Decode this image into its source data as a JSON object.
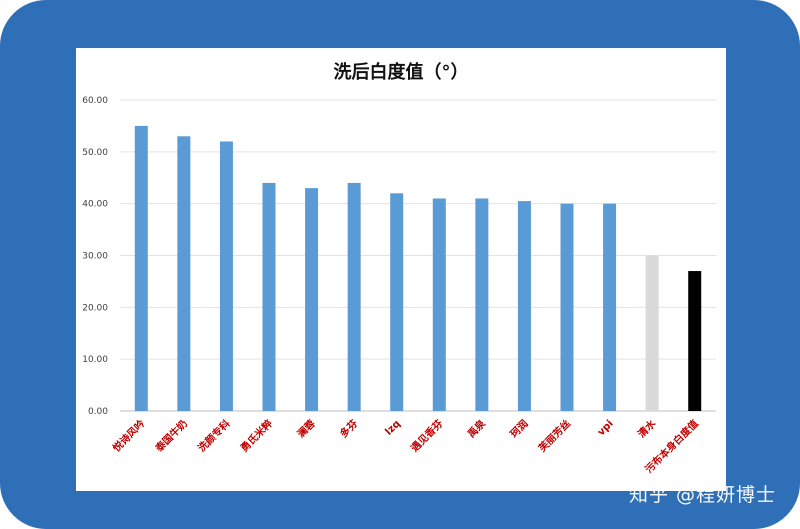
{
  "watermark": "知乎 @程妍博士",
  "chart_data": {
    "type": "bar",
    "title": "洗后白度值（°）",
    "xlabel": "",
    "ylabel": "",
    "ylim": [
      0,
      60
    ],
    "yticks": [
      "0.00",
      "10.00",
      "20.00",
      "30.00",
      "40.00",
      "50.00",
      "60.00"
    ],
    "grid": true,
    "categories": [
      "悦诗风吟",
      "泰国牛奶",
      "洗颜专科",
      "勇氏米粹",
      "澜蓉",
      "多芬",
      "lzq",
      "遇见香芬",
      "禹泉",
      "珂润",
      "芙丽芳丝",
      "vpi",
      "清水",
      "污布本身白度值"
    ],
    "values": [
      55,
      53,
      52,
      44,
      43,
      44,
      42,
      41,
      41,
      40.5,
      40,
      40,
      30,
      27
    ],
    "colors": {
      "bar": "#5b9bd5",
      "water": "#d9d9d9",
      "baseline": "#000000",
      "label": "#c00000",
      "frame": "#2e6fb7"
    },
    "bar_colors": [
      "#5b9bd5",
      "#5b9bd5",
      "#5b9bd5",
      "#5b9bd5",
      "#5b9bd5",
      "#5b9bd5",
      "#5b9bd5",
      "#5b9bd5",
      "#5b9bd5",
      "#5b9bd5",
      "#5b9bd5",
      "#5b9bd5",
      "#d9d9d9",
      "#000000"
    ]
  }
}
